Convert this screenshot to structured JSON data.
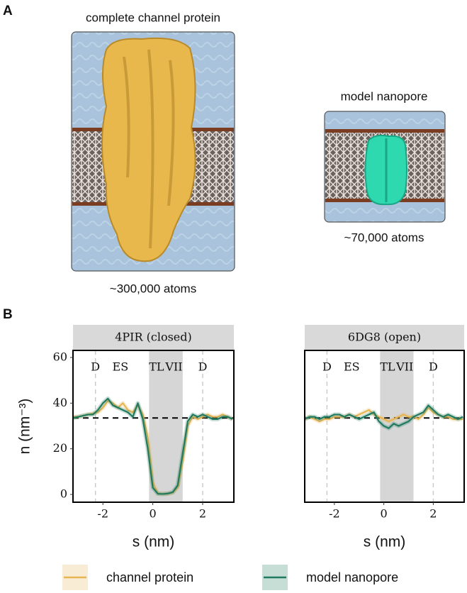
{
  "panel_a": {
    "label": "A",
    "left": {
      "title": "complete channel protein",
      "caption": "~300,000 atoms"
    },
    "right": {
      "title": "model nanopore",
      "caption": "~70,000 atoms"
    }
  },
  "panel_b": {
    "label": "B"
  },
  "chart_data": [
    {
      "type": "line",
      "title": "4PIR (closed)",
      "xlabel": "s (nm)",
      "ylabel": "n (nm⁻³)",
      "xlim": [
        -3.2,
        3.25
      ],
      "ylim": [
        -3.4,
        63.1
      ],
      "xticks": [
        -2,
        0,
        2
      ],
      "yticks": [
        0,
        20,
        40,
        60
      ],
      "shaded_region": [
        -0.15,
        1.2
      ],
      "vlines": [
        -2.3,
        2.0
      ],
      "hline": 33.5,
      "regions": [
        {
          "label": "D",
          "x": -2.3
        },
        {
          "label": "ES",
          "x": -1.3
        },
        {
          "label": "TL",
          "x": 0.15
        },
        {
          "label": "VII",
          "x": 0.85
        },
        {
          "label": "D",
          "x": 2.0
        }
      ],
      "x": [
        -3.2,
        -3.0,
        -2.8,
        -2.6,
        -2.4,
        -2.2,
        -2.0,
        -1.8,
        -1.6,
        -1.4,
        -1.2,
        -1.0,
        -0.8,
        -0.6,
        -0.4,
        -0.2,
        0,
        0.2,
        0.4,
        0.6,
        0.8,
        1.0,
        1.2,
        1.4,
        1.6,
        1.8,
        2.0,
        2.2,
        2.4,
        2.6,
        2.8,
        3.0,
        3.2
      ],
      "series": [
        {
          "name": "channel protein",
          "color": "#e8b553",
          "values": [
            34,
            34,
            34.5,
            35,
            35.5,
            36,
            38,
            41,
            40,
            38,
            40,
            37,
            36,
            39,
            35,
            25,
            5,
            0.5,
            0.2,
            0.3,
            0.8,
            3,
            15,
            30,
            34,
            33,
            34,
            35,
            34,
            34,
            35,
            34,
            33
          ]
        },
        {
          "name": "model nanopore",
          "color": "#1f7a60",
          "values": [
            33.5,
            34,
            34.5,
            35,
            35,
            37,
            40,
            42,
            39,
            38,
            37,
            36,
            34,
            40,
            33,
            20,
            3,
            0.3,
            0.2,
            0.4,
            1,
            4,
            18,
            32,
            35,
            34,
            35,
            34,
            33,
            33,
            34,
            34,
            33
          ]
        }
      ]
    },
    {
      "type": "line",
      "title": "6DG8 (open)",
      "xlabel": "s (nm)",
      "xlim": [
        -3.2,
        3.25
      ],
      "ylim": [
        -3.4,
        63.1
      ],
      "xticks": [
        -2,
        0,
        2
      ],
      "shaded_region": [
        -0.15,
        1.2
      ],
      "vlines": [
        -2.3,
        2.0
      ],
      "hline": 33.5,
      "regions": [
        {
          "label": "D",
          "x": -2.3
        },
        {
          "label": "ES",
          "x": -1.3
        },
        {
          "label": "TL",
          "x": 0.15
        },
        {
          "label": "VII",
          "x": 0.85
        },
        {
          "label": "D",
          "x": 2.0
        }
      ],
      "x": [
        -3.2,
        -3.0,
        -2.8,
        -2.6,
        -2.4,
        -2.2,
        -2.0,
        -1.8,
        -1.6,
        -1.4,
        -1.2,
        -1.0,
        -0.8,
        -0.6,
        -0.4,
        -0.2,
        0,
        0.2,
        0.4,
        0.6,
        0.8,
        1.0,
        1.2,
        1.4,
        1.6,
        1.8,
        2.0,
        2.2,
        2.4,
        2.6,
        2.8,
        3.0,
        3.2
      ],
      "series": [
        {
          "color": "#e8b553",
          "values": [
            33,
            34,
            33,
            32,
            33,
            33,
            34,
            34,
            34,
            35,
            34,
            35,
            36,
            37,
            35,
            34,
            33,
            32,
            33,
            34,
            35,
            34,
            34,
            33,
            35,
            38,
            36,
            35,
            34,
            34,
            33,
            33,
            33
          ]
        },
        {
          "color": "#1f7a60",
          "values": [
            33,
            34,
            34,
            33,
            34,
            34,
            35,
            35,
            34,
            35,
            34,
            33,
            34,
            35,
            36,
            32,
            30,
            29,
            31,
            30,
            31,
            32,
            34,
            35,
            36,
            39,
            37,
            35,
            34,
            35,
            34,
            33,
            34
          ]
        }
      ]
    }
  ]
}
